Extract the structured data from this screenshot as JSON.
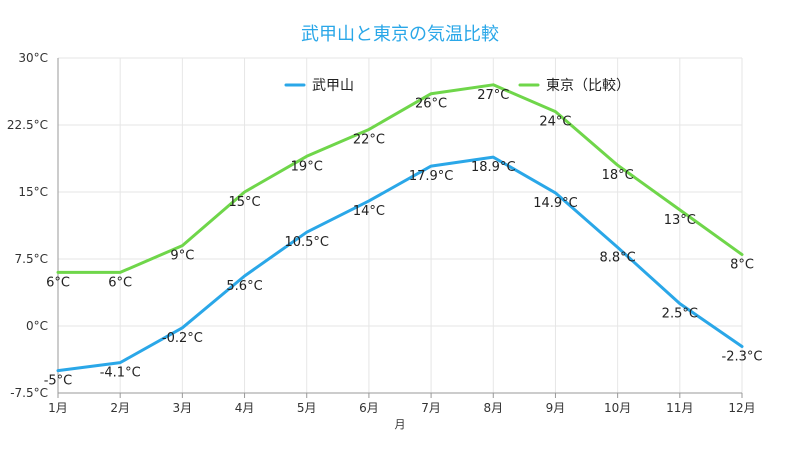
{
  "chart_data": {
    "type": "line",
    "title": "武甲山と東京の気温比較",
    "xlabel": "月",
    "ylabel": "",
    "categories": [
      "1月",
      "2月",
      "3月",
      "4月",
      "5月",
      "6月",
      "7月",
      "8月",
      "9月",
      "10月",
      "11月",
      "12月"
    ],
    "ylim": [
      -7.5,
      30
    ],
    "yticks": [
      -7.5,
      0,
      7.5,
      15,
      22.5,
      30
    ],
    "ytick_labels": [
      "-7.5°C",
      "0°C",
      "7.5°C",
      "15°C",
      "22.5°C",
      "30°C"
    ],
    "grid": true,
    "legend_position": "top",
    "series": [
      {
        "name": "武甲山",
        "color": "#2aa7e8",
        "values": [
          -5,
          -4.1,
          -0.2,
          5.6,
          10.5,
          14,
          17.9,
          18.9,
          14.9,
          8.8,
          2.5,
          -2.3
        ],
        "labels": [
          "-5°C",
          "-4.1°C",
          "-0.2°C",
          "5.6°C",
          "10.5°C",
          "14°C",
          "17.9°C",
          "18.9°C",
          "14.9°C",
          "8.8°C",
          "2.5°C",
          "-2.3°C"
        ]
      },
      {
        "name": "東京（比較）",
        "color": "#6fd64a",
        "values": [
          6,
          6,
          9,
          15,
          19,
          22,
          26,
          27,
          24,
          18,
          13,
          8
        ],
        "labels": [
          "6°C",
          "6°C",
          "9°C",
          "15°C",
          "19°C",
          "22°C",
          "26°C",
          "27°C",
          "24°C",
          "18°C",
          "13°C",
          "8°C"
        ]
      }
    ]
  }
}
